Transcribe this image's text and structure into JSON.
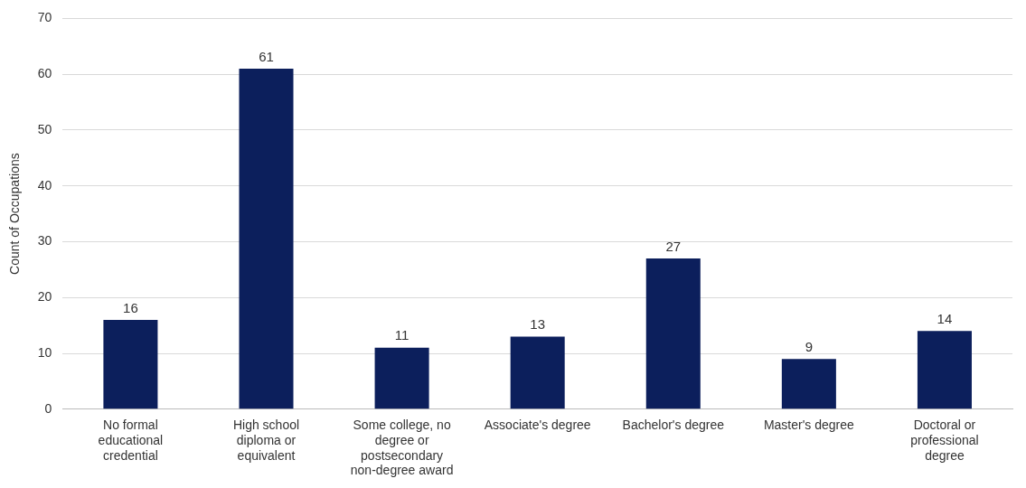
{
  "chart_data": {
    "type": "bar",
    "ylabel": "Count of Occupations",
    "categories": [
      "No formal educational credential",
      "High school diploma or equivalent",
      "Some college, no degree or postsecondary non-degree award",
      "Associate's degree",
      "Bachelor's degree",
      "Master's degree",
      "Doctoral or professional degree"
    ],
    "values": [
      16,
      61,
      11,
      13,
      27,
      9,
      14
    ],
    "color": "#0c1f5c",
    "ylim": [
      0,
      70
    ],
    "yticks": [
      0,
      10,
      20,
      30,
      40,
      50,
      60,
      70
    ],
    "grid": "y",
    "data_labels": true
  }
}
